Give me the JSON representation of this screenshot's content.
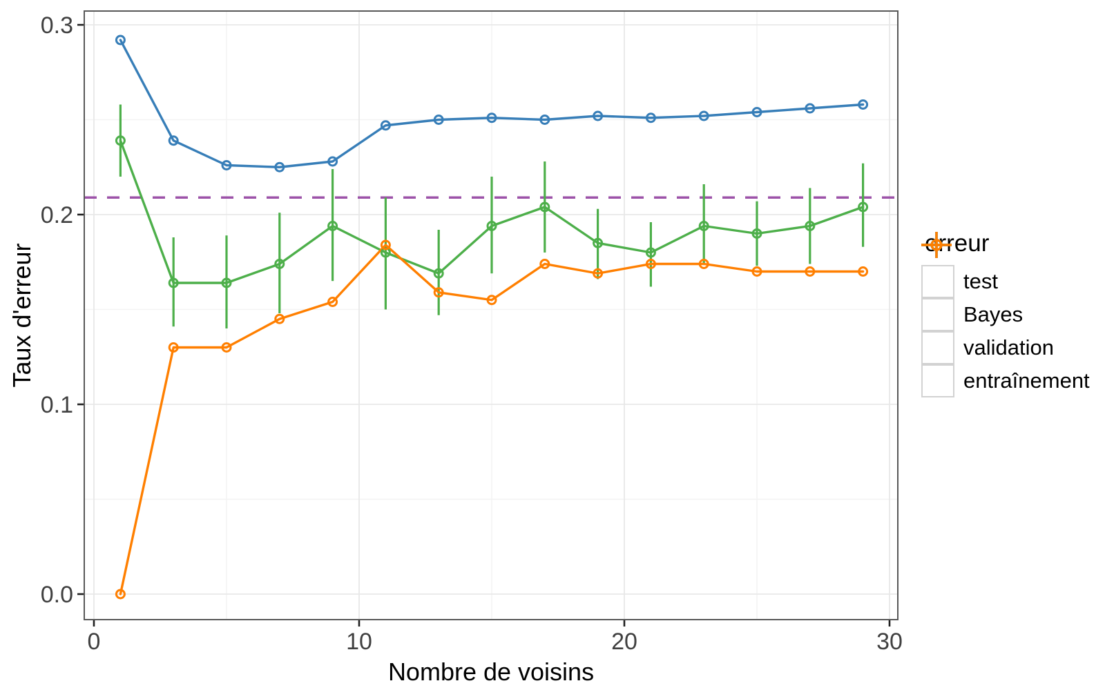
{
  "chart_data": {
    "type": "line",
    "title": "",
    "xlabel": "Nombre de voisins",
    "ylabel": "Taux d'erreur",
    "legend": {
      "title": "erreur",
      "position": "right"
    },
    "x_ticks": [
      0,
      10,
      20,
      30
    ],
    "x_tick_labels": [
      "0",
      "10",
      "20",
      "30"
    ],
    "x_minor_ticks": [
      5,
      15,
      25
    ],
    "y_ticks": [
      0,
      0.1,
      0.2,
      0.3
    ],
    "y_tick_labels": [
      "0.0",
      "0.1",
      "0.2",
      "0.3"
    ],
    "y_minor_ticks": [
      0.05,
      0.15,
      0.25
    ],
    "xlim": [
      -0.4,
      30.3
    ],
    "ylim": [
      -0.013,
      0.307
    ],
    "grid": "major-and-minor",
    "x": [
      1,
      3,
      5,
      7,
      9,
      11,
      13,
      15,
      17,
      19,
      21,
      23,
      25,
      27,
      29
    ],
    "series": [
      {
        "name": "test",
        "color": "#377EB8",
        "marker": "open-circle",
        "zorder": 3,
        "values": [
          0.292,
          0.239,
          0.226,
          0.225,
          0.228,
          0.247,
          0.25,
          0.251,
          0.25,
          0.252,
          0.251,
          0.252,
          0.254,
          0.256,
          0.258
        ]
      },
      {
        "name": "Bayes",
        "color": "#9C52A8",
        "type": "hline",
        "style": "dashed",
        "value": 0.209
      },
      {
        "name": "validation",
        "color": "#4DAF4A",
        "marker": "open-circle",
        "zorder": 1,
        "values": [
          0.239,
          0.164,
          0.164,
          0.174,
          0.194,
          0.18,
          0.169,
          0.194,
          0.204,
          0.185,
          0.18,
          0.194,
          0.19,
          0.194,
          0.204
        ],
        "ymin": [
          0.22,
          0.141,
          0.14,
          0.148,
          0.165,
          0.15,
          0.147,
          0.169,
          0.18,
          0.166,
          0.162,
          0.174,
          0.173,
          0.174,
          0.183
        ],
        "ymax": [
          0.258,
          0.188,
          0.189,
          0.201,
          0.224,
          0.209,
          0.192,
          0.22,
          0.228,
          0.203,
          0.196,
          0.216,
          0.207,
          0.214,
          0.227
        ]
      },
      {
        "name": "entraînement",
        "color": "#FF7F00",
        "marker": "open-circle",
        "zorder": 2,
        "values": [
          0.0,
          0.13,
          0.13,
          0.145,
          0.154,
          0.184,
          0.159,
          0.155,
          0.174,
          0.169,
          0.174,
          0.174,
          0.17,
          0.17,
          0.17
        ]
      }
    ]
  }
}
